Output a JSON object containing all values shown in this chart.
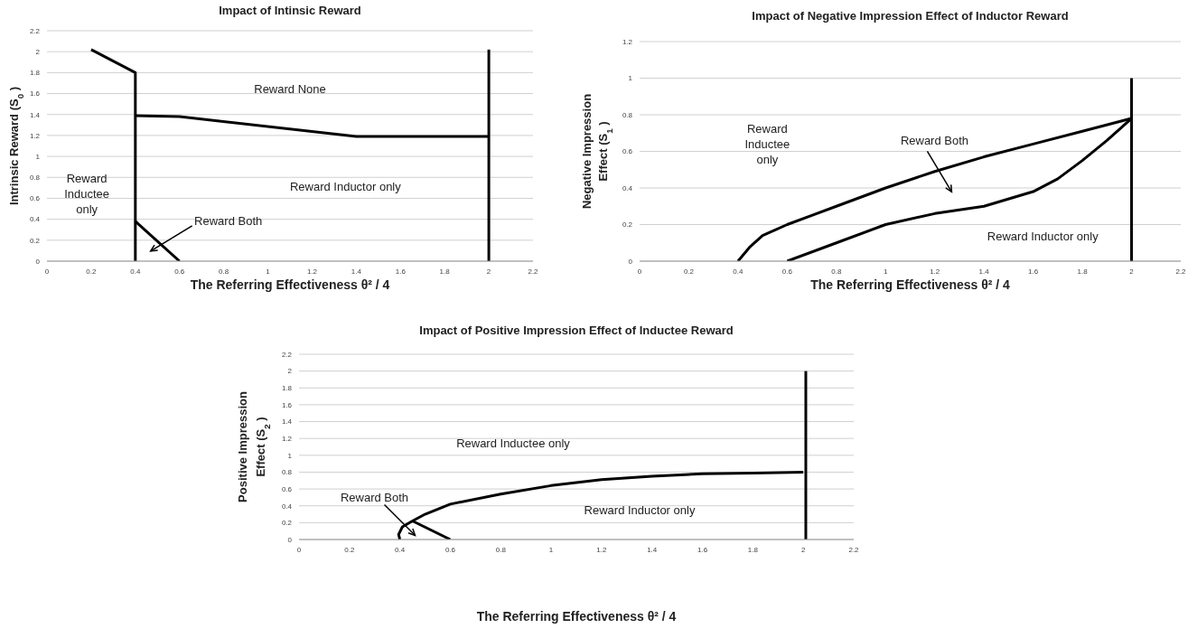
{
  "chart_data": [
    {
      "type": "line",
      "title": "Impact  of Intinsic Reward",
      "xlabel": "The Referring Effectiveness  θ² / 4",
      "ylabel": "Intrinsic Reward (S$_{0}$)",
      "xlim": [
        0,
        2.2
      ],
      "xticks": [
        0,
        0.2,
        0.4,
        0.6,
        0.8,
        1,
        1.2,
        1.4,
        1.6,
        1.8,
        2,
        2.2
      ],
      "ylim": [
        0,
        2.2
      ],
      "yticks": [
        0,
        0.2,
        0.4,
        0.6,
        0.8,
        1,
        1.2,
        1.4,
        1.6,
        1.8,
        2,
        2.2
      ],
      "grid": "y",
      "marker": "none",
      "line_style": "solid",
      "series": [
        {
          "color": "#000000",
          "x": [
            0.2,
            0.4,
            0.4
          ],
          "values": [
            2.02,
            1.8,
            0
          ]
        },
        {
          "color": "#000000",
          "x": [
            0.4,
            0.6,
            1.4,
            2
          ],
          "values": [
            1.39,
            1.38,
            1.19,
            1.19
          ]
        },
        {
          "color": "#000000",
          "x": [
            0.4,
            0.6
          ],
          "values": [
            0.38,
            0
          ]
        },
        {
          "color": "#000000",
          "x": [
            2,
            2
          ],
          "values": [
            0,
            2.02
          ]
        }
      ],
      "annotations": [
        "Reward None",
        "Reward Inductor only",
        "Reward\nInductee\nonly",
        "Reward Both"
      ]
    },
    {
      "type": "line",
      "title": "Impact of Negative Impression Effect of Inductor Reward",
      "xlabel": "The Referring Effectiveness  θ² / 4",
      "ylabel": "Negative Impression\nEffect  (S$_{1}$)",
      "xlim": [
        0,
        2.2
      ],
      "xticks": [
        0,
        0.2,
        0.4,
        0.6,
        0.8,
        1,
        1.2,
        1.4,
        1.6,
        1.8,
        2,
        2.2
      ],
      "ylim": [
        0,
        1.2
      ],
      "yticks": [
        0,
        0.2,
        0.4,
        0.6,
        0.8,
        1,
        1.2
      ],
      "grid": "y",
      "marker": "none",
      "line_style": "solid",
      "series": [
        {
          "color": "#000000",
          "x": [
            0.4,
            0.45,
            0.5,
            0.6,
            0.7,
            0.8,
            1,
            1.2,
            1.4,
            1.6,
            1.8,
            2
          ],
          "values": [
            0,
            0.08,
            0.14,
            0.2,
            0.25,
            0.3,
            0.4,
            0.49,
            0.57,
            0.64,
            0.71,
            0.78
          ]
        },
        {
          "color": "#000000",
          "x": [
            0.6,
            0.8,
            1,
            1.2,
            1.4,
            1.6,
            1.7,
            1.8,
            1.9,
            2
          ],
          "values": [
            0,
            0.1,
            0.2,
            0.26,
            0.3,
            0.38,
            0.45,
            0.55,
            0.66,
            0.78
          ]
        },
        {
          "color": "#000000",
          "x": [
            2,
            2
          ],
          "values": [
            0,
            1
          ]
        }
      ],
      "annotations": [
        "Reward\nInductee\nonly",
        "Reward Both",
        "Reward Inductor only"
      ]
    },
    {
      "type": "line",
      "title": "Impact of Positive Impression Effect of Inductee Reward",
      "xlabel": "The Referring Effectiveness  θ² / 4",
      "ylabel": "Positive Impression\nEffect  (S$_{2}$)",
      "xlim": [
        0,
        2.2
      ],
      "xticks": [
        0,
        0.2,
        0.4,
        0.6,
        0.8,
        1,
        1.2,
        1.4,
        1.6,
        1.8,
        2,
        2.2
      ],
      "ylim": [
        0,
        2.2
      ],
      "yticks": [
        0,
        0.2,
        0.4,
        0.6,
        0.8,
        1,
        1.2,
        1.4,
        1.6,
        1.8,
        2,
        2.2
      ],
      "grid": "y",
      "marker": "none",
      "line_style": "solid",
      "series": [
        {
          "color": "#000000",
          "x": [
            0.4,
            0.395,
            0.41,
            0.45,
            0.5,
            0.6,
            0.8,
            1,
            1.2,
            1.4,
            1.6,
            1.8,
            2
          ],
          "values": [
            0,
            0.06,
            0.15,
            0.22,
            0.3,
            0.42,
            0.54,
            0.64,
            0.71,
            0.75,
            0.78,
            0.79,
            0.8
          ]
        },
        {
          "color": "#000000",
          "x": [
            0.45,
            0.6
          ],
          "values": [
            0.22,
            0
          ]
        },
        {
          "color": "#000000",
          "x": [
            2.01,
            2.01
          ],
          "values": [
            0,
            2
          ]
        }
      ],
      "annotations": [
        "Reward Inductee only",
        "Reward Both",
        "Reward Inductor only"
      ]
    }
  ]
}
